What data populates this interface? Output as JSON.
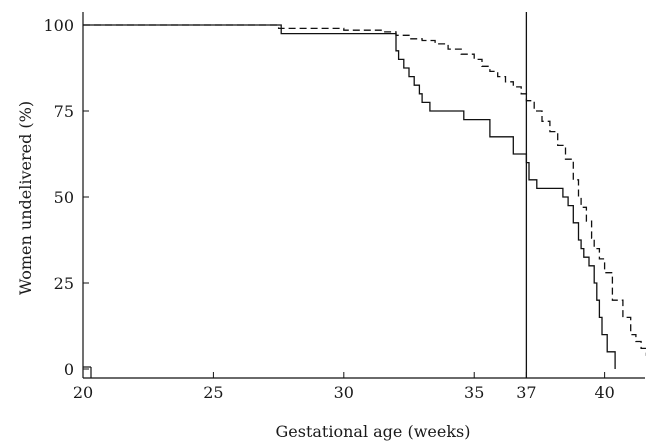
{
  "chart_data": {
    "type": "line",
    "title": "",
    "xlabel": "Gestational age (weeks)",
    "ylabel": "Women undelivered (%)",
    "xlim": [
      20,
      42.2
    ],
    "ylim": [
      -2,
      103
    ],
    "grid": false,
    "x_ticks": [
      {
        "value": 20,
        "label": "20"
      },
      {
        "value": 25,
        "label": "25"
      },
      {
        "value": 30,
        "label": "30"
      },
      {
        "value": 35,
        "label": "35"
      },
      {
        "value": 37,
        "label": "37"
      },
      {
        "value": 40,
        "label": "40"
      }
    ],
    "y_ticks": [
      {
        "value": 0,
        "label": "0"
      },
      {
        "value": 25,
        "label": "25"
      },
      {
        "value": 50,
        "label": "50"
      },
      {
        "value": 75,
        "label": "75"
      },
      {
        "value": 100,
        "label": "100"
      }
    ],
    "reference_line": {
      "x": 37,
      "style": "solid"
    },
    "series": [
      {
        "style": "solid",
        "x": [
          20,
          27.6,
          32,
          32.1,
          32.3,
          32.5,
          32.7,
          32.9,
          33,
          33.3,
          34.6,
          35.6,
          36.5,
          37,
          37.1,
          37.4,
          38.4,
          38.6,
          38.8,
          39,
          39.1,
          39.2,
          39.4,
          39.6,
          39.7,
          39.8,
          39.9,
          40.1,
          40.4
        ],
        "y": [
          100,
          97.5,
          92.5,
          90,
          87.5,
          85,
          82.5,
          80,
          77.5,
          75,
          72.5,
          67.5,
          62.5,
          60,
          55,
          52.5,
          50,
          47.5,
          42.5,
          37.5,
          35,
          32.5,
          30,
          25,
          20,
          15,
          10,
          5,
          0
        ]
      },
      {
        "style": "dashed",
        "x": [
          20,
          27.5,
          30,
          31.5,
          32,
          32.5,
          33,
          33.5,
          34,
          34.5,
          35,
          35.3,
          35.6,
          35.9,
          36.2,
          36.5,
          36.8,
          37,
          37.3,
          37.6,
          37.9,
          38.2,
          38.5,
          38.8,
          39,
          39.1,
          39.3,
          39.5,
          39.6,
          39.8,
          40,
          40.3,
          40.7,
          41,
          41.2,
          41.4,
          41.6,
          41.8,
          42,
          42.15
        ],
        "y": [
          100,
          99,
          98.5,
          98,
          97,
          96,
          95.5,
          94.5,
          93,
          91.5,
          90,
          88,
          86.5,
          85,
          83.5,
          82,
          80,
          78,
          75,
          72,
          69,
          65,
          61,
          55,
          50,
          47,
          43,
          38,
          35,
          32,
          28,
          20,
          15,
          10,
          8,
          6,
          4,
          2,
          1,
          0
        ]
      }
    ]
  }
}
